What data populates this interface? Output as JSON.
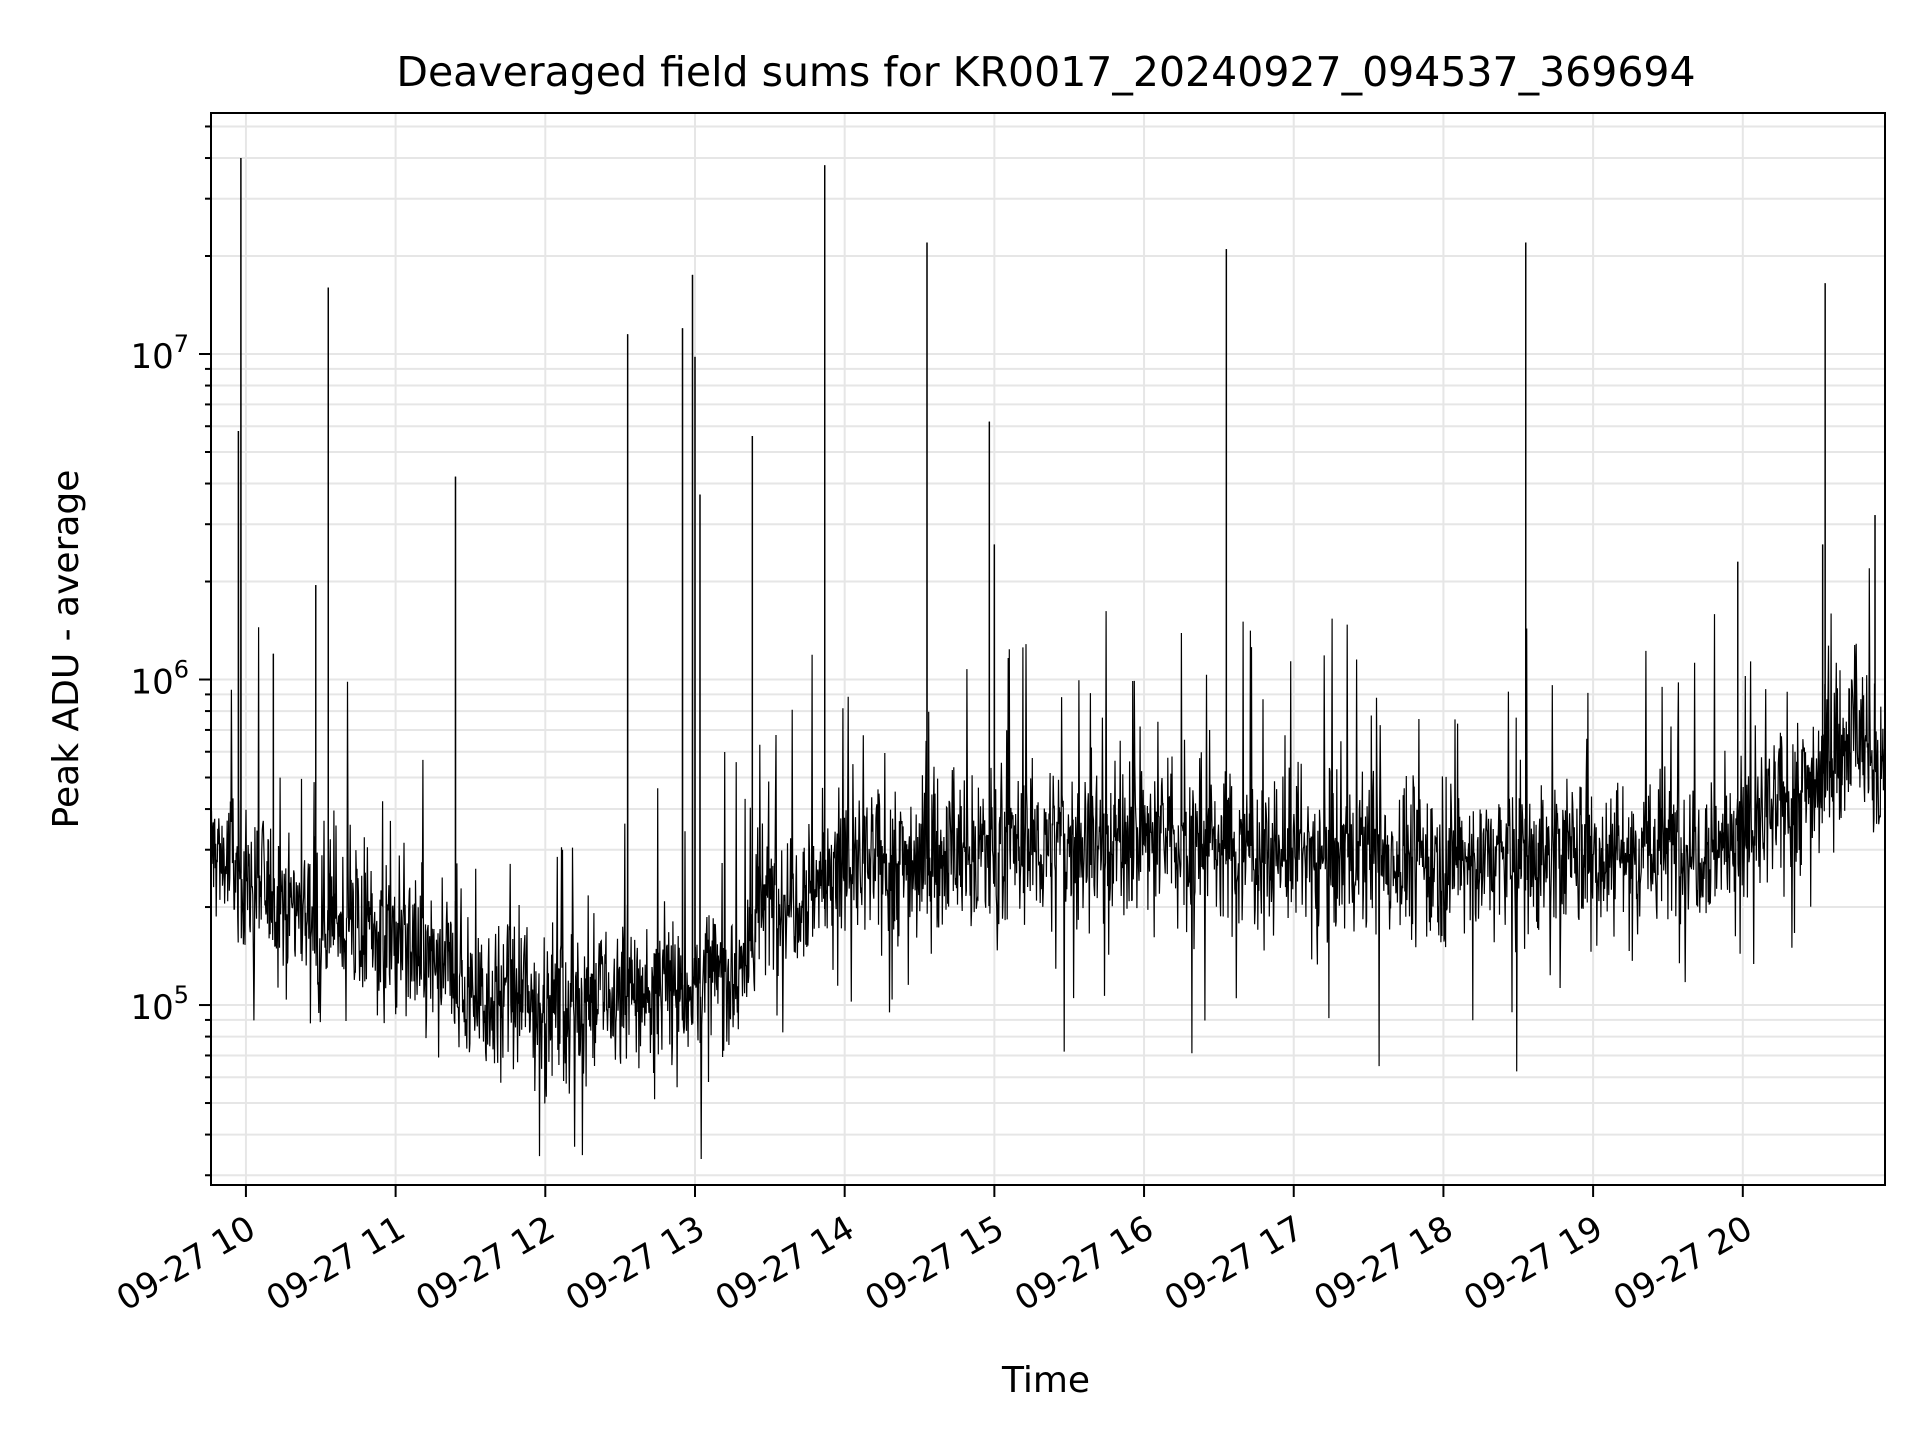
{
  "chart_data": {
    "type": "line",
    "title": "Deaveraged field sums for KR0017_20240927_094537_369694",
    "xlabel": "Time",
    "ylabel": "Peak ADU - average",
    "y_scale": "log",
    "x_range": [
      "09-27 09:46",
      "09-27 20:57"
    ],
    "ylim": [
      28000,
      55000000
    ],
    "grid": true,
    "line_color": "#000000",
    "x_ticks": [
      "09-27 10",
      "09-27 11",
      "09-27 12",
      "09-27 13",
      "09-27 14",
      "09-27 15",
      "09-27 16",
      "09-27 17",
      "09-27 18",
      "09-27 19",
      "09-27 20"
    ],
    "y_ticks": [
      {
        "base": "10",
        "exp": "5"
      },
      {
        "base": "10",
        "exp": "6"
      },
      {
        "base": "10",
        "exp": "7"
      }
    ],
    "baseline": [
      {
        "t": "09-27 09:46",
        "v": 300000
      },
      {
        "t": "09-27 10:05",
        "v": 230000
      },
      {
        "t": "09-27 10:30",
        "v": 190000
      },
      {
        "t": "09-27 11:00",
        "v": 160000
      },
      {
        "t": "09-27 11:30",
        "v": 110000
      },
      {
        "t": "09-27 12:00",
        "v": 100000
      },
      {
        "t": "09-27 12:30",
        "v": 105000
      },
      {
        "t": "09-27 13:00",
        "v": 115000
      },
      {
        "t": "09-27 13:20",
        "v": 130000
      },
      {
        "t": "09-27 13:25",
        "v": 200000
      },
      {
        "t": "09-27 14:00",
        "v": 260000
      },
      {
        "t": "09-27 15:00",
        "v": 300000
      },
      {
        "t": "09-27 16:00",
        "v": 330000
      },
      {
        "t": "09-27 17:00",
        "v": 290000
      },
      {
        "t": "09-27 18:00",
        "v": 280000
      },
      {
        "t": "09-27 19:00",
        "v": 290000
      },
      {
        "t": "09-27 20:00",
        "v": 320000
      },
      {
        "t": "09-27 20:30",
        "v": 500000
      },
      {
        "t": "09-27 20:45",
        "v": 700000
      },
      {
        "t": "09-27 20:57",
        "v": 500000
      }
    ],
    "spikes": [
      {
        "t": "09-27 09:58",
        "v": 40000000
      },
      {
        "t": "09-27 09:57",
        "v": 5800000
      },
      {
        "t": "09-27 10:33",
        "v": 16000000
      },
      {
        "t": "09-27 10:28",
        "v": 1950000
      },
      {
        "t": "09-27 10:11",
        "v": 1200000
      },
      {
        "t": "09-27 11:24",
        "v": 4200000
      },
      {
        "t": "09-27 12:33",
        "v": 11500000
      },
      {
        "t": "09-27 12:55",
        "v": 12000000
      },
      {
        "t": "09-27 12:59",
        "v": 17500000
      },
      {
        "t": "09-27 13:00",
        "v": 9800000
      },
      {
        "t": "09-27 13:02",
        "v": 3700000
      },
      {
        "t": "09-27 13:23",
        "v": 5600000
      },
      {
        "t": "09-27 13:52",
        "v": 38000000
      },
      {
        "t": "09-27 14:33",
        "v": 22000000
      },
      {
        "t": "09-27 14:58",
        "v": 6200000
      },
      {
        "t": "09-27 15:00",
        "v": 2600000
      },
      {
        "t": "09-27 16:33",
        "v": 21000000
      },
      {
        "t": "09-27 18:33",
        "v": 22000000
      },
      {
        "t": "09-27 19:58",
        "v": 2300000
      },
      {
        "t": "09-27 20:33",
        "v": 16500000
      },
      {
        "t": "09-27 20:32",
        "v": 2600000
      },
      {
        "t": "09-27 20:53",
        "v": 3200000
      }
    ]
  }
}
